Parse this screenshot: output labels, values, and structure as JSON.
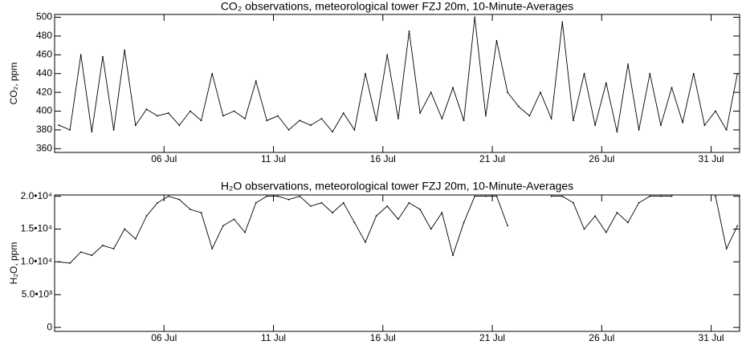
{
  "chart_data": [
    {
      "type": "line",
      "title": "CO₂ observations, meteorological tower FZJ 20m, 10-Minute-Averages",
      "y_label": "CO₂, ppm",
      "x": [
        1.2,
        1.7,
        2.2,
        2.7,
        3.2,
        3.7,
        4.2,
        4.7,
        5.2,
        5.7,
        6.2,
        6.7,
        7.2,
        7.7,
        8.2,
        8.7,
        9.2,
        9.7,
        10.2,
        10.7,
        11.2,
        11.7,
        12.2,
        12.7,
        13.2,
        13.7,
        14.2,
        14.7,
        15.2,
        15.7,
        16.2,
        16.7,
        17.2,
        17.7,
        18.2,
        18.7,
        19.2,
        19.7,
        20.2,
        20.7,
        21.2,
        21.7,
        22.2,
        22.7,
        23.2,
        23.7,
        24.2,
        24.7,
        25.2,
        25.7,
        26.2,
        26.7,
        27.2,
        27.7,
        28.2,
        28.7,
        29.2,
        29.7,
        30.2,
        30.7,
        31.2,
        31.7,
        32.2
      ],
      "values": [
        385,
        380,
        460,
        378,
        458,
        380,
        465,
        385,
        402,
        395,
        398,
        385,
        400,
        390,
        440,
        395,
        400,
        392,
        432,
        390,
        395,
        380,
        390,
        385,
        392,
        378,
        398,
        380,
        440,
        390,
        460,
        392,
        485,
        398,
        420,
        392,
        425,
        390,
        500,
        395,
        475,
        420,
        405,
        395,
        420,
        392,
        495,
        390,
        440,
        385,
        430,
        378,
        450,
        380,
        440,
        385,
        425,
        388,
        440,
        385,
        400,
        380,
        440
      ],
      "color": "#000000",
      "xlim": [
        1,
        32.3
      ],
      "xticks": [
        {
          "value": 6,
          "label": "06 Jul"
        },
        {
          "value": 11,
          "label": "11 Jul"
        },
        {
          "value": 16,
          "label": "16 Jul"
        },
        {
          "value": 21,
          "label": "21 Jul"
        },
        {
          "value": 26,
          "label": "26 Jul"
        },
        {
          "value": 31,
          "label": "31 Jul"
        }
      ],
      "ylim": [
        356,
        503
      ],
      "yticks": [
        360,
        380,
        400,
        420,
        440,
        460,
        480,
        500
      ]
    },
    {
      "type": "line",
      "title": "H₂O observations, meteorological tower FZJ 20m, 10-Minute-Averages",
      "y_label": "H₂O, ppm",
      "x": [
        1.2,
        1.7,
        2.2,
        2.7,
        3.2,
        3.7,
        4.2,
        4.7,
        5.2,
        5.7,
        6.2,
        6.7,
        7.2,
        7.7,
        8.2,
        8.7,
        9.2,
        9.7,
        10.2,
        10.7,
        11.2,
        11.7,
        12.2,
        12.7,
        13.2,
        13.7,
        14.2,
        14.7,
        15.2,
        15.7,
        16.2,
        16.7,
        17.2,
        17.7,
        18.2,
        18.7,
        19.2,
        19.7,
        20.2,
        20.7,
        21.2,
        21.7,
        22.2,
        22.7,
        23.2,
        23.7,
        24.2,
        24.7,
        25.2,
        25.7,
        26.2,
        26.7,
        27.2,
        27.7,
        28.2,
        28.7,
        29.2,
        29.7,
        30.2,
        30.7,
        31.2,
        31.7,
        32.2
      ],
      "values": [
        10000,
        9800,
        11500,
        11000,
        12500,
        12000,
        15000,
        13500,
        17000,
        19000,
        20000,
        19500,
        18000,
        17500,
        12000,
        15500,
        16500,
        14500,
        19000,
        20000,
        20000,
        19500,
        20000,
        18500,
        19000,
        17500,
        19000,
        16000,
        13000,
        17000,
        18500,
        16500,
        19000,
        18000,
        15000,
        17500,
        11000,
        16000,
        20000,
        20000,
        20000,
        15500,
        null,
        null,
        null,
        20000,
        20000,
        19000,
        15000,
        17000,
        14500,
        17500,
        16000,
        19000,
        20000,
        20000,
        20000,
        null,
        null,
        null,
        20000,
        12000,
        15500
      ],
      "color": "#000000",
      "xlim": [
        1,
        32.3
      ],
      "xticks": [
        {
          "value": 6,
          "label": "06 Jul"
        },
        {
          "value": 11,
          "label": "11 Jul"
        },
        {
          "value": 16,
          "label": "16 Jul"
        },
        {
          "value": 21,
          "label": "21 Jul"
        },
        {
          "value": 26,
          "label": "26 Jul"
        },
        {
          "value": 31,
          "label": "31 Jul"
        }
      ],
      "ylim": [
        -600,
        20200
      ],
      "yticks": [
        0,
        {
          "value": 5000,
          "label": "5.0•10³"
        },
        {
          "value": 10000,
          "label": "1.0•10⁴"
        },
        {
          "value": 15000,
          "label": "1.5•10⁴"
        },
        {
          "value": 20000,
          "label": "2.0•10⁴"
        }
      ]
    }
  ]
}
